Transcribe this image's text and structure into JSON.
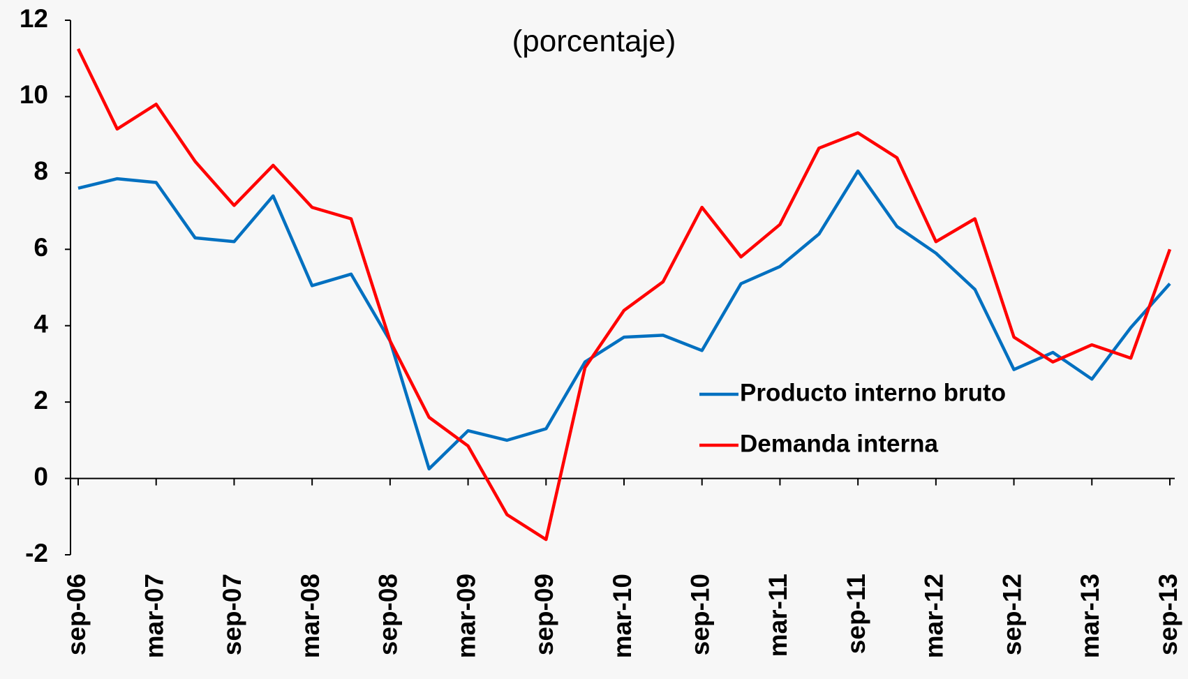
{
  "chart_data": {
    "type": "line",
    "subtitle": "(porcentaje)",
    "categories": [
      "sep-06",
      null,
      "mar-07",
      null,
      "sep-07",
      null,
      "mar-08",
      null,
      "sep-08",
      null,
      "mar-09",
      null,
      "sep-09",
      null,
      "mar-10",
      null,
      "sep-10",
      null,
      "mar-11",
      null,
      "sep-11",
      null,
      "mar-12",
      null,
      "sep-12",
      null,
      "mar-13",
      null,
      "sep-13"
    ],
    "series": [
      {
        "name": "Producto interno bruto",
        "color": "#0070c0",
        "values": [
          7.6,
          7.85,
          7.75,
          6.3,
          6.2,
          7.4,
          5.05,
          5.35,
          3.6,
          0.25,
          1.25,
          1.0,
          1.3,
          3.05,
          3.7,
          3.75,
          3.35,
          5.1,
          5.55,
          6.4,
          8.05,
          6.6,
          5.9,
          4.95,
          2.85,
          3.3,
          2.6,
          3.95,
          5.1
        ]
      },
      {
        "name": "Demanda interna",
        "color": "#ff0000",
        "values": [
          11.25,
          9.15,
          9.8,
          8.3,
          7.15,
          8.2,
          7.1,
          6.8,
          3.6,
          1.6,
          0.85,
          -0.95,
          -1.6,
          2.9,
          4.4,
          5.15,
          7.1,
          5.8,
          6.65,
          8.65,
          9.05,
          8.4,
          6.2,
          6.8,
          3.7,
          3.05,
          3.5,
          3.15,
          6.0
        ]
      }
    ],
    "ylim": [
      -2,
      12
    ],
    "yticks": [
      -2,
      0,
      2,
      4,
      6,
      8,
      10,
      12
    ]
  }
}
